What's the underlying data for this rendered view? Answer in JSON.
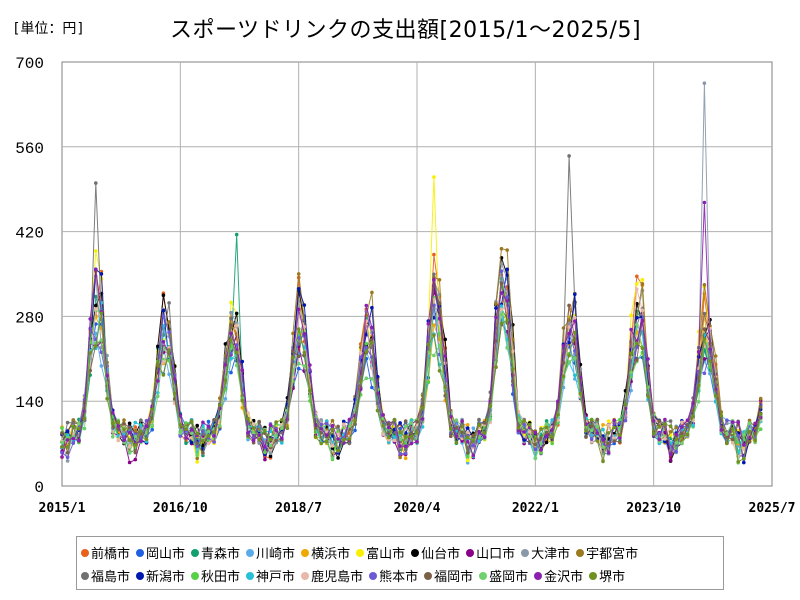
{
  "header": {
    "unit": "[単位：円]",
    "title": "スポーツドリンクの支出額[2015/1〜2025/5]"
  },
  "chart_data": {
    "type": "line",
    "ylim": [
      0,
      700
    ],
    "yticks": [
      "0",
      "140",
      "280",
      "420",
      "560",
      "700"
    ],
    "xticks": [
      "2015/1",
      "2016/10",
      "2018/7",
      "2020/4",
      "2022/1",
      "2023/10",
      "2025/7"
    ],
    "grid": true,
    "legend_position": "bottom",
    "series": [
      {
        "name": "前橋市",
        "color": "#e8601c"
      },
      {
        "name": "岡山市",
        "color": "#1f5fe0"
      },
      {
        "name": "青森市",
        "color": "#13a070"
      },
      {
        "name": "川崎市",
        "color": "#5aabe8"
      },
      {
        "name": "横浜市",
        "color": "#f0a800"
      },
      {
        "name": "富山市",
        "color": "#f8f000"
      },
      {
        "name": "仙台市",
        "color": "#000000"
      },
      {
        "name": "山口市",
        "color": "#880088"
      },
      {
        "name": "大津市",
        "color": "#8899aa"
      },
      {
        "name": "宇都宮市",
        "color": "#9a7a20"
      },
      {
        "name": "福島市",
        "color": "#707070"
      },
      {
        "name": "新潟市",
        "color": "#0018b0"
      },
      {
        "name": "秋田市",
        "color": "#58d048"
      },
      {
        "name": "神戸市",
        "color": "#28c0d8"
      },
      {
        "name": "鹿児島市",
        "color": "#e8b8a8"
      },
      {
        "name": "熊本市",
        "color": "#6a5ad8"
      },
      {
        "name": "福岡市",
        "color": "#7a6048"
      },
      {
        "name": "盛岡市",
        "color": "#70d070"
      },
      {
        "name": "金沢市",
        "color": "#8a20b0"
      },
      {
        "name": "堺市",
        "color": "#709020"
      }
    ],
    "peaks": {
      "福島市": {
        "2015/7": 500,
        "2022/7": 545
      },
      "大津市": {
        "2024/7": 665
      },
      "富山市": {
        "2020/7": 510
      },
      "金沢市": {
        "2024/7": 468
      },
      "青森市": {
        "2017/8": 415
      }
    }
  }
}
